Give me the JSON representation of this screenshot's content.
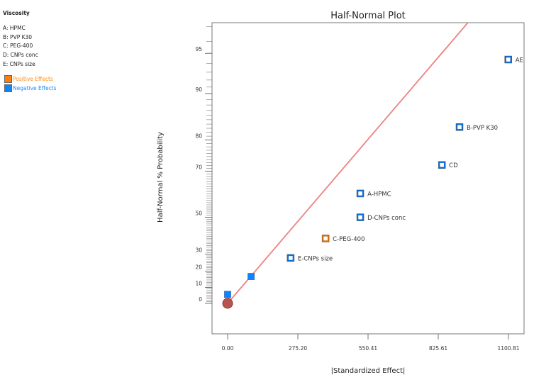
{
  "legend": {
    "title": "Viscosity",
    "factors": [
      "A: HPMC",
      "B: PVP K30",
      "C: PEG-400",
      "D: CNPs conc",
      "E: CNPs size"
    ],
    "effects": [
      {
        "label": "Positive Effects",
        "color": "#ff7f0e"
      },
      {
        "label": "Negative Effects",
        "color": "#0a84ff"
      }
    ]
  },
  "chart_data": {
    "type": "scatter",
    "title": "Half-Normal Plot",
    "xlabel": "|Standardized Effect|",
    "ylabel": "Half-Normal % Probability",
    "xlim": [
      -59,
      1150
    ],
    "x_ticks": [
      0.0,
      275.2,
      550.41,
      825.61,
      1100.81
    ],
    "x_tick_labels": [
      "0.00",
      "275.20",
      "550.41",
      "825.61",
      "1100.81"
    ],
    "y_ticks": [
      0,
      10,
      20,
      30,
      50,
      70,
      80,
      90,
      95
    ],
    "y_tick_labels": [
      "0",
      "10",
      "20",
      "30",
      "50",
      "70",
      "80",
      "90",
      "95"
    ],
    "points": [
      {
        "label": "",
        "x": 0,
        "y": 0,
        "kind": "origin",
        "color": "#b85450"
      },
      {
        "label": "",
        "x": 0,
        "y": 5.6,
        "kind": "error-negative",
        "color": "#0a84ff"
      },
      {
        "label": "",
        "x": 92,
        "y": 16.7,
        "kind": "error-negative",
        "color": "#0a84ff"
      },
      {
        "label": "E-CNPs size",
        "x": 247,
        "y": 27.8,
        "kind": "negative",
        "color": "#0a6fd8"
      },
      {
        "label": "C-PEG-400",
        "x": 384,
        "y": 38.9,
        "kind": "positive",
        "color": "#e0700a"
      },
      {
        "label": "D-CNPs conc",
        "x": 520,
        "y": 50.0,
        "kind": "negative",
        "color": "#0a6fd8"
      },
      {
        "label": "A-HPMC",
        "x": 520,
        "y": 61.1,
        "kind": "negative",
        "color": "#0a6fd8"
      },
      {
        "label": "CD",
        "x": 840,
        "y": 72.2,
        "kind": "negative",
        "color": "#0a6fd8"
      },
      {
        "label": "B-PVP K30",
        "x": 909,
        "y": 83.3,
        "kind": "negative",
        "color": "#0a6fd8"
      },
      {
        "label": "AE",
        "x": 1100,
        "y": 94.4,
        "kind": "negative",
        "color": "#0a6fd8"
      }
    ],
    "fit_line": {
      "x0": 0,
      "slope_z_per_effect": 0.002336,
      "color": "#f08080"
    }
  }
}
